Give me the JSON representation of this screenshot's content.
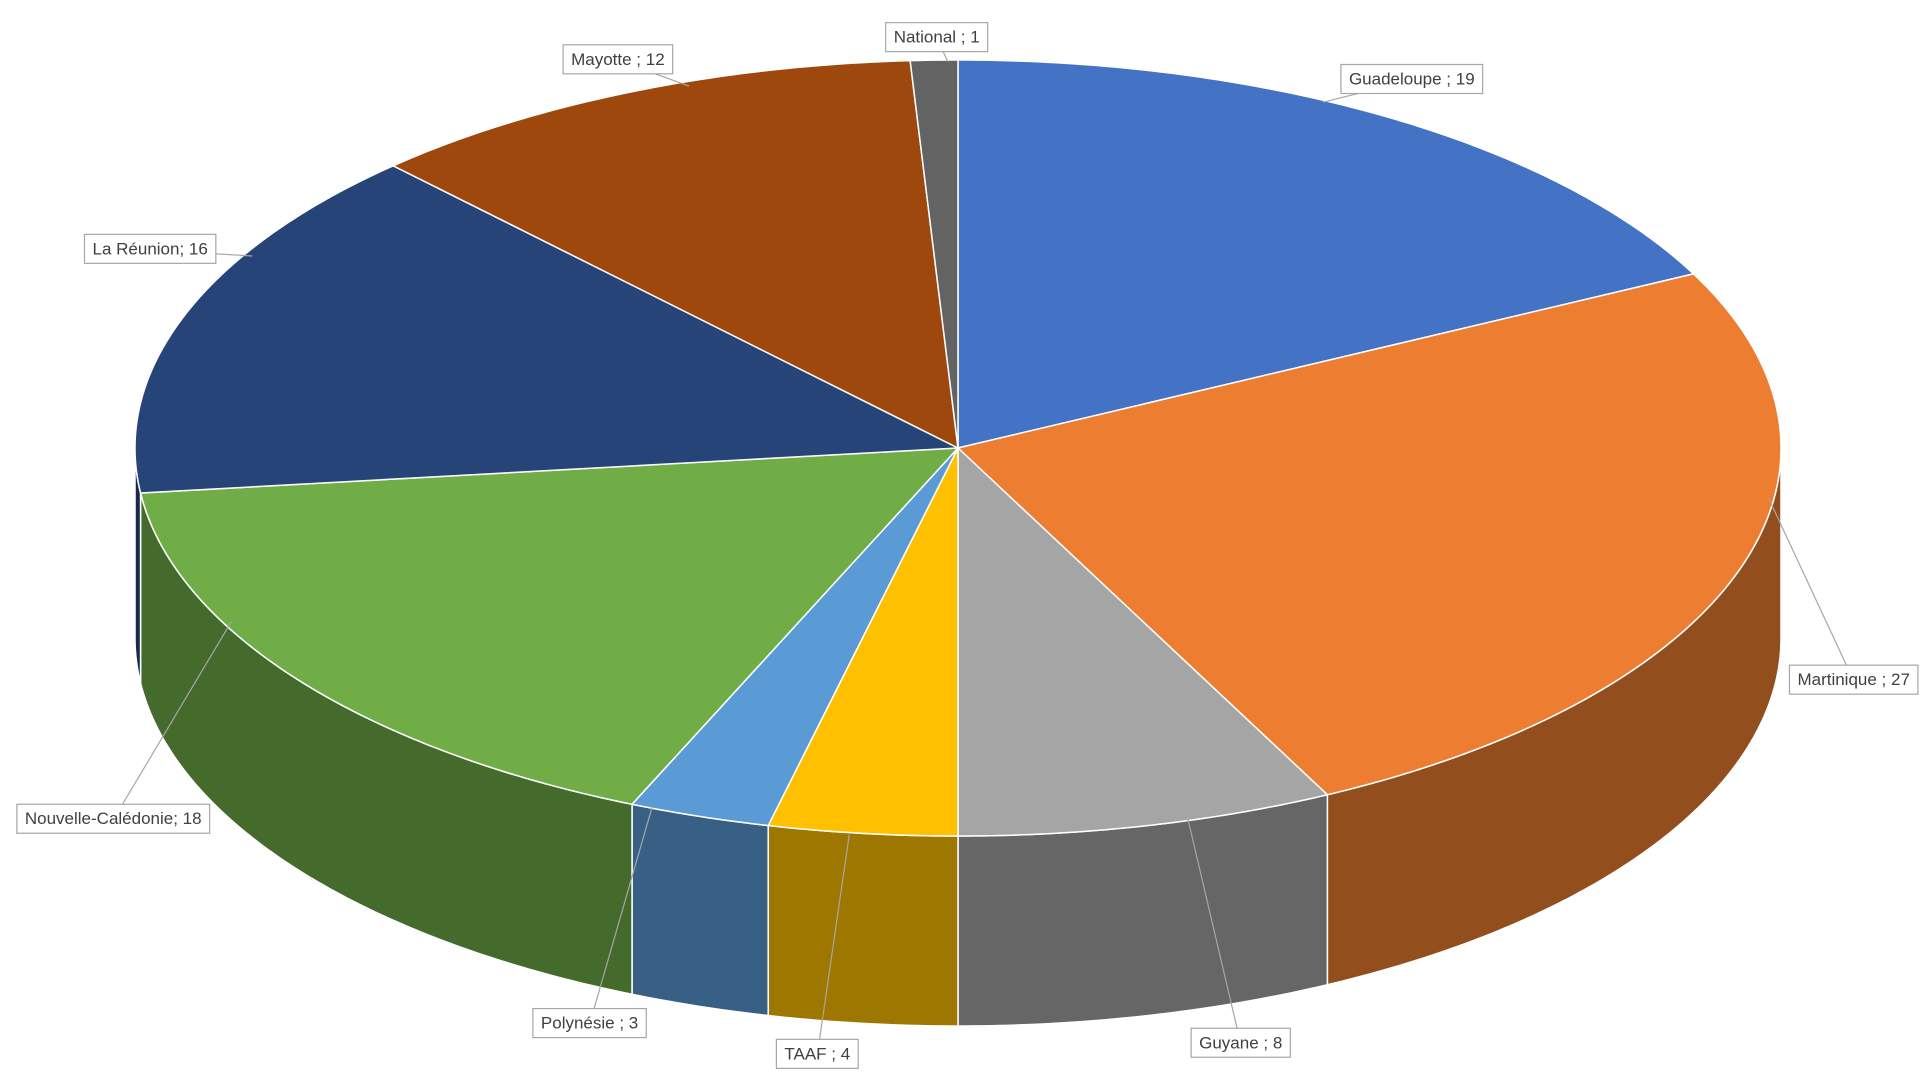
{
  "chart_data": {
    "type": "pie3d",
    "values": [
      19,
      27,
      8,
      4,
      3,
      18,
      16,
      12,
      1
    ],
    "value_labels": [
      "Guadeloupe ; 19",
      "Martinique ; 27",
      "Guyane ; 8",
      "TAAF ; 4",
      "Polynésie ; 3",
      "Nouvelle-Calédonie; 18",
      "La Réunion; 16",
      "Mayotte ; 12",
      "National ; 1"
    ],
    "colors": [
      "#4472c4",
      "#ed7d31",
      "#a5a5a5",
      "#ffc000",
      "#5b9bd5",
      "#70ad47",
      "#264478",
      "#9e480e",
      "#636363"
    ]
  }
}
